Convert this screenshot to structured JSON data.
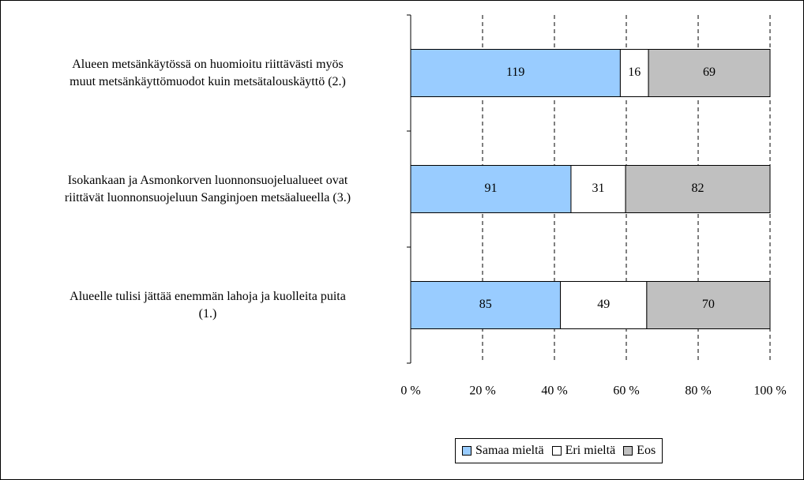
{
  "chart_data": {
    "type": "bar",
    "orientation": "horizontal",
    "stacked": "percent",
    "categories": [
      "Alueen metsänkäytössä on huomioitu riittävästi myös\nmuut metsänkäyttömuodot kuin metsätalouskäyttö (2.)",
      "Isokankaan ja Asmonkorven luonnonsuojelualueet ovat\nriittävät luonnonsuojeluun Sanginjoen metsäalueella (3.)",
      "Alueelle tulisi jättää enemmän lahoja ja kuolleita puita\n(1.)"
    ],
    "series": [
      {
        "name": "Samaa mieltä",
        "color": "#99ccff",
        "values": [
          119,
          91,
          85
        ]
      },
      {
        "name": "Eri mieltä",
        "color": "#ffffff",
        "values": [
          16,
          31,
          49
        ]
      },
      {
        "name": "Eos",
        "color": "#c0c0c0",
        "values": [
          69,
          82,
          70
        ]
      }
    ],
    "xlim": [
      0,
      100
    ],
    "xticks": [
      {
        "value": 0,
        "label": "0 %"
      },
      {
        "value": 20,
        "label": "20 %"
      },
      {
        "value": 40,
        "label": "40 %"
      },
      {
        "value": 60,
        "label": "60 %"
      },
      {
        "value": 80,
        "label": "80 %"
      },
      {
        "value": 100,
        "label": "100 %"
      }
    ],
    "grid": true,
    "legend": "bottom"
  }
}
